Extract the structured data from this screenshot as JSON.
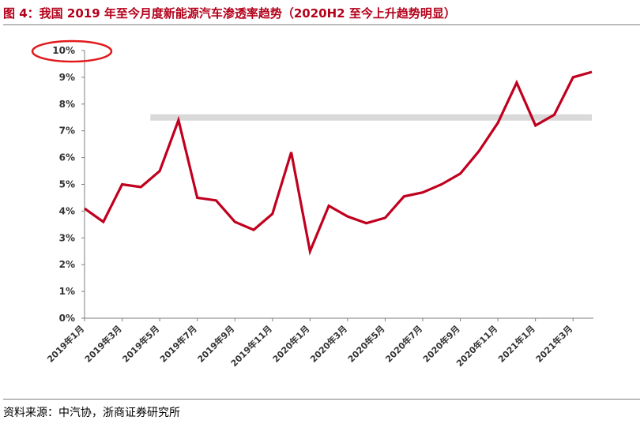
{
  "header": {
    "title": "图 4：我国 2019 年至今月度新能源汽车渗透率趋势（2020H2 至今上升趋势明显）"
  },
  "footer": {
    "source": "资料来源：中汽协，浙商证券研究所"
  },
  "colors": {
    "title": "#b3001a",
    "series_line": "#c0001e",
    "reference_band": "#d9d9d9",
    "highlight_ellipse": "#e31a1c",
    "axis": "#7f7f7f"
  },
  "chart_data": {
    "type": "line",
    "title": "",
    "xlabel": "",
    "ylabel": "",
    "ylim": [
      0,
      10
    ],
    "y_unit": "%",
    "y_ticks": [
      "0%",
      "1%",
      "2%",
      "3%",
      "4%",
      "5%",
      "6%",
      "7%",
      "8%",
      "9%",
      "10%"
    ],
    "x_tick_labels": [
      "2019年1月",
      "2019年3月",
      "2019年5月",
      "2019年7月",
      "2019年9月",
      "2019年11月",
      "2020年1月",
      "2020年3月",
      "2020年5月",
      "2020年7月",
      "2020年9月",
      "2020年11月",
      "2021年1月",
      "2021年3月"
    ],
    "categories": [
      "2019年1月",
      "2019年2月",
      "2019年3月",
      "2019年4月",
      "2019年5月",
      "2019年6月",
      "2019年7月",
      "2019年8月",
      "2019年9月",
      "2019年10月",
      "2019年11月",
      "2019年12月",
      "2020年1月",
      "2020年2月",
      "2020年3月",
      "2020年4月",
      "2020年5月",
      "2020年6月",
      "2020年7月",
      "2020年8月",
      "2020年9月",
      "2020年10月",
      "2020年11月",
      "2020年12月",
      "2021年1月",
      "2021年2月",
      "2021年3月",
      "2021年4月"
    ],
    "series": [
      {
        "values": [
          4.1,
          3.6,
          5.0,
          4.9,
          5.5,
          7.4,
          4.5,
          4.4,
          3.6,
          3.3,
          3.9,
          6.2,
          2.5,
          4.2,
          3.8,
          3.55,
          3.75,
          4.55,
          4.7,
          5.0,
          5.4,
          6.25,
          7.3,
          8.8,
          7.2,
          7.6,
          9.0,
          9.2
        ]
      }
    ],
    "reference_band": {
      "value": 7.5,
      "from_index": 3.5,
      "to_index": 27
    },
    "annotations": [
      {
        "type": "ellipse",
        "target": "y-tick 10%"
      }
    ],
    "grid": false,
    "legend": "none"
  }
}
